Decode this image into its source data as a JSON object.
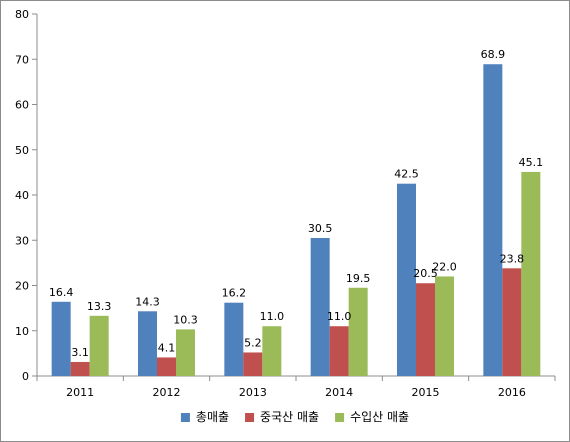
{
  "chart_data": {
    "type": "bar",
    "categories": [
      "2011",
      "2012",
      "2013",
      "2014",
      "2015",
      "2016"
    ],
    "series": [
      {
        "name": "총매출",
        "values": [
          16.4,
          14.3,
          16.2,
          30.5,
          42.5,
          68.9
        ],
        "color": "#4F81BD"
      },
      {
        "name": "중국산 매출",
        "values": [
          3.1,
          4.1,
          5.2,
          11.0,
          20.5,
          23.8
        ],
        "color": "#C0504D"
      },
      {
        "name": "수입산 매출",
        "values": [
          13.3,
          10.3,
          11.0,
          19.5,
          22.0,
          45.1
        ],
        "color": "#9BBB59"
      }
    ],
    "data_labels": [
      [
        "16.4",
        "14.3",
        "16.2",
        "30.5",
        "42.5",
        "68.9"
      ],
      [
        "3.1",
        "4.1",
        "5.2",
        "11.0",
        "20.5",
        "23.8"
      ],
      [
        "13.3",
        "10.3",
        "11.0",
        "19.5",
        "22.0",
        "45.1"
      ]
    ],
    "ylim": [
      0,
      80
    ],
    "yticks": [
      "0",
      "10",
      "20",
      "30",
      "40",
      "50",
      "60",
      "70",
      "80"
    ],
    "grid": false,
    "legend_position": "bottom"
  }
}
